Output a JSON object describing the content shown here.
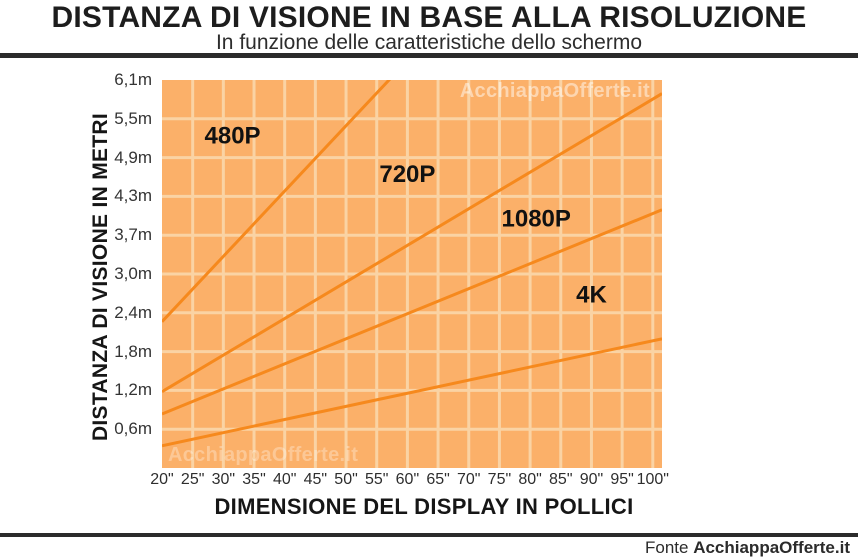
{
  "header": {
    "title": "DISTANZA DI VISIONE IN BASE ALLA RISOLUZIONE",
    "subtitle": "In funzione delle caratteristiche dello schermo"
  },
  "watermark": {
    "text": "AcchiappaOfferte.it"
  },
  "footer": {
    "prefix": "Fonte ",
    "brand": "AcchiappaOfferte.it"
  },
  "chart_data": {
    "type": "line",
    "title": "DISTANZA DI VISIONE IN BASE ALLA RISOLUZIONE",
    "subtitle": "In funzione delle caratteristiche dello schermo",
    "xlabel": "DIMENSIONE DEL DISPLAY IN POLLICI",
    "ylabel": "DISTANZA DI VISIONE IN METRI",
    "xlim": [
      20,
      101.5
    ],
    "ylim": [
      0,
      6.1
    ],
    "grid": true,
    "legend_position": "inline-labels",
    "x_ticks": [
      20,
      25,
      30,
      35,
      40,
      45,
      50,
      55,
      60,
      65,
      70,
      75,
      80,
      85,
      90,
      95,
      100
    ],
    "x_tick_labels": [
      "20\"",
      "25\"",
      "30\"",
      "35\"",
      "40\"",
      "45\"",
      "50\"",
      "55\"",
      "60\"",
      "65\"",
      "70\"",
      "75\"",
      "80\"",
      "85\"",
      "90\"",
      "95\"",
      "100\""
    ],
    "y_ticks": [
      0.61,
      1.22,
      1.83,
      2.44,
      3.05,
      3.66,
      4.27,
      4.88,
      5.49,
      6.1
    ],
    "y_tick_labels": [
      "0,6m",
      "1,2m",
      "1,8m",
      "2,4m",
      "3,0m",
      "3,7m",
      "4,3m",
      "4,9m",
      "5,5m",
      "6,1m"
    ],
    "series": [
      {
        "name": "480P",
        "points": [
          [
            20,
            2.3
          ],
          [
            57,
            6.1
          ]
        ],
        "clipped_at_top": true,
        "label_anchor": {
          "x": 31.5,
          "y": 5.2
        }
      },
      {
        "name": "720P",
        "points": [
          [
            20,
            1.2
          ],
          [
            100,
            5.8
          ]
        ],
        "clipped_at_top": false,
        "label_anchor": {
          "x": 60,
          "y": 4.6
        }
      },
      {
        "name": "1080P",
        "points": [
          [
            20,
            0.85
          ],
          [
            100,
            4.0
          ]
        ],
        "clipped_at_top": false,
        "label_anchor": {
          "x": 81,
          "y": 3.9
        }
      },
      {
        "name": "4K",
        "points": [
          [
            20,
            0.35
          ],
          [
            100,
            2.0
          ]
        ],
        "clipped_at_top": false,
        "label_anchor": {
          "x": 90,
          "y": 2.7
        }
      }
    ],
    "colors": {
      "plot_background": "#FBB069",
      "grid": "#FAD3A4",
      "series_line": "#F6891D",
      "series_label": "#111111",
      "axis_text": "#343434",
      "title_text": "#1d1d1d",
      "divider": "#2b2b2b"
    }
  }
}
